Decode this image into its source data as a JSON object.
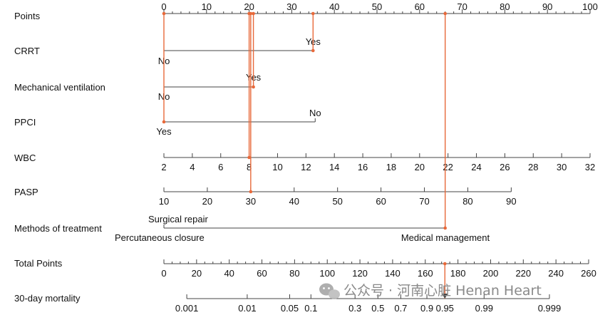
{
  "chart_data": {
    "type": "nomogram",
    "scales": [
      {
        "label": "Points",
        "ticks": [
          "0",
          "10",
          "20",
          "30",
          "40",
          "50",
          "60",
          "70",
          "80",
          "90",
          "100"
        ],
        "tick_values": [
          0,
          10,
          20,
          30,
          40,
          50,
          60,
          70,
          80,
          90,
          100
        ]
      },
      {
        "label": "CRRT",
        "categories": [
          {
            "label": "No",
            "points": 0
          },
          {
            "label": "Yes",
            "points": 35
          }
        ]
      },
      {
        "label": "Mechanical ventilation",
        "categories": [
          {
            "label": "No",
            "points": 0
          },
          {
            "label": "Yes",
            "points": 21
          }
        ]
      },
      {
        "label": "PPCI",
        "categories": [
          {
            "label": "No",
            "points": 35.5
          },
          {
            "label": "Yes",
            "points": 0
          }
        ]
      },
      {
        "label": "WBC",
        "ticks": [
          "2",
          "4",
          "6",
          "8",
          "10",
          "12",
          "14",
          "16",
          "18",
          "20",
          "22",
          "24",
          "26",
          "28",
          "30",
          "32"
        ],
        "tick_values": [
          2,
          4,
          6,
          8,
          10,
          12,
          14,
          16,
          18,
          20,
          22,
          24,
          26,
          28,
          30,
          32
        ],
        "range_points": [
          0,
          100
        ]
      },
      {
        "label": "PASP",
        "ticks": [
          "10",
          "20",
          "30",
          "40",
          "50",
          "60",
          "70",
          "80",
          "90"
        ],
        "tick_values": [
          10,
          20,
          30,
          40,
          50,
          60,
          70,
          80,
          90
        ],
        "range_points": [
          0,
          81.5
        ]
      },
      {
        "label": "Methods of treatment",
        "categories": [
          {
            "label": "Surgical repair",
            "points": 0
          },
          {
            "label": "Percutaneous closure",
            "points": 0
          },
          {
            "label": "Medical management",
            "points": 66
          }
        ]
      },
      {
        "label": "Total Points",
        "ticks": [
          "0",
          "20",
          "40",
          "60",
          "80",
          "100",
          "120",
          "140",
          "160",
          "180",
          "200",
          "220",
          "240",
          "260"
        ],
        "tick_values": [
          0,
          20,
          40,
          60,
          80,
          100,
          120,
          140,
          160,
          180,
          200,
          220,
          240,
          260
        ]
      },
      {
        "label": "30-day mortality",
        "ticks": [
          "0.001",
          "0.01",
          "0.05",
          "0.1",
          "0.3",
          "0.5",
          "0.7",
          "0.9",
          "0.95",
          "0.99",
          "0.999"
        ],
        "tick_values": [
          0.001,
          0.01,
          0.05,
          0.1,
          0.3,
          0.5,
          0.7,
          0.9,
          0.95,
          0.99,
          0.999
        ],
        "total_points_at_ticks": [
          14,
          51,
          77,
          90,
          117,
          131,
          145,
          161,
          172,
          196,
          236
        ]
      }
    ],
    "example_patient": {
      "crrt": "Yes",
      "mechanical_ventilation": "Yes",
      "ppci": "Yes",
      "wbc": 8,
      "pasp": 30,
      "methods_of_treatment": "Medical management",
      "points": [
        35,
        21,
        0,
        30,
        20,
        66
      ],
      "total_points": 172,
      "mortality": 0.95
    }
  },
  "watermark": {
    "text": "公众号 · 河南心脏 Henan Heart",
    "icon": "wechat-icon"
  },
  "colors": {
    "highlight": "#e8693a",
    "axis": "#444444"
  }
}
